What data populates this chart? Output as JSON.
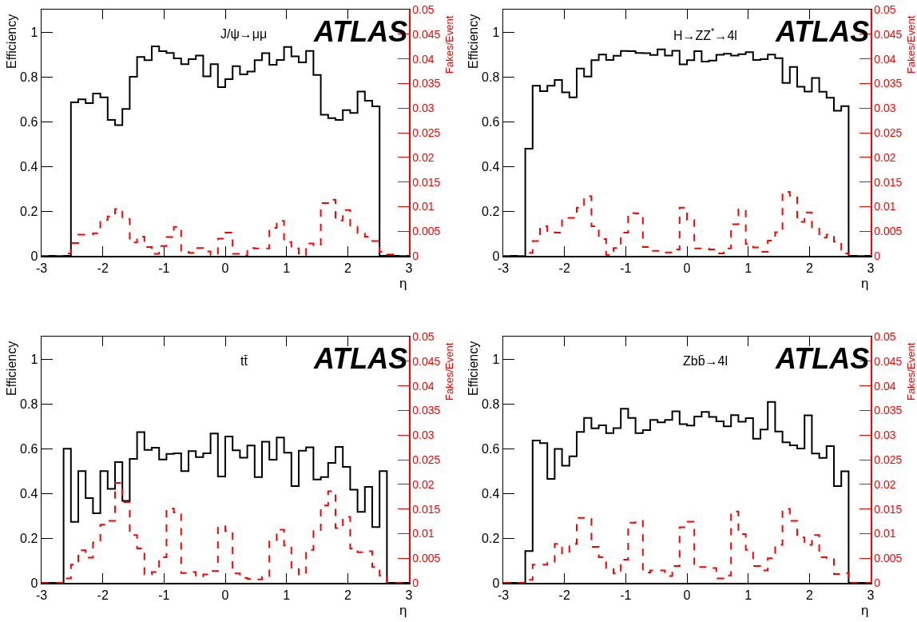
{
  "chart_data": [
    {
      "type": "histogram",
      "xlabel": "η",
      "ylabel": "Efficiency",
      "y2label": "Fakes/Event",
      "annotations": [
        "J/ψ→μμ",
        "ATLAS"
      ],
      "bins": [
        -3,
        -2.88,
        -2.76,
        -2.64,
        -2.52,
        -2.4,
        -2.28,
        -2.16,
        -2.04,
        -1.92,
        -1.8,
        -1.68,
        -1.56,
        -1.44,
        -1.32,
        -1.2,
        -1.08,
        -0.96,
        -0.84,
        -0.72,
        -0.6,
        -0.48,
        -0.36,
        -0.24,
        -0.12,
        0,
        0.12,
        0.24,
        0.36,
        0.48,
        0.6,
        0.72,
        0.84,
        0.96,
        1.08,
        1.2,
        1.32,
        1.44,
        1.56,
        1.68,
        1.8,
        1.92,
        2.04,
        2.16,
        2.28,
        2.4,
        2.52,
        2.64,
        2.76,
        2.88,
        3
      ],
      "series": [
        {
          "type": "histogram",
          "color": "#000000",
          "values": [
            0,
            0,
            0,
            0,
            0.686,
            0.699,
            0.682,
            0.725,
            0.708,
            0.607,
            0.584,
            0.656,
            0.8,
            0.888,
            0.874,
            0.936,
            0.914,
            0.906,
            0.882,
            0.856,
            0.879,
            0.895,
            0.802,
            0.856,
            0.754,
            0.789,
            0.847,
            0.811,
            0.823,
            0.874,
            0.905,
            0.854,
            0.875,
            0.933,
            0.891,
            0.864,
            0.915,
            0.808,
            0.63,
            0.615,
            0.607,
            0.651,
            0.638,
            0.734,
            0.693,
            0.668,
            0,
            0,
            0,
            0
          ]
        },
        {
          "axis": "y2",
          "line_style": "dashed",
          "color": "#ff0000",
          "values": [
            0,
            0,
            0,
            0.0005,
            0.0026,
            0.0043,
            0.0043,
            0.0046,
            0.0073,
            0.008,
            0.0095,
            0.0075,
            0.0027,
            0.0039,
            0.0018,
            0.0004,
            0.002,
            0.0038,
            0.0059,
            0.0008,
            0.0006,
            0.0016,
            0.0009,
            0.0002,
            0.0035,
            0.0047,
            0.0004,
            0.0001,
            0.0016,
            0.0015,
            0.0015,
            0.0057,
            0.0071,
            0.0028,
            0.0015,
            0.0002,
            0.0025,
            0.0021,
            0.0107,
            0.0114,
            0.0072,
            0.0093,
            0.0059,
            0.0046,
            0.0039,
            0.003,
            0.0008,
            0.0003,
            0,
            0
          ]
        }
      ],
      "xlim": [
        -3,
        3
      ],
      "xticks": [
        -3,
        -2,
        -1,
        0,
        1,
        2,
        3
      ],
      "ylim": [
        0,
        1.1
      ],
      "yticks": [
        0,
        0.2,
        0.4,
        0.6,
        0.8,
        1
      ],
      "y2lim": [
        0,
        0.05
      ],
      "y2ticks": [
        0,
        0.005,
        0.01,
        0.015,
        0.02,
        0.025,
        0.03,
        0.035,
        0.04,
        0.045,
        0.05
      ],
      "grid": false
    },
    {
      "type": "histogram",
      "xlabel": "η",
      "ylabel": "Efficiency",
      "y2label": "Fakes/Event",
      "annotations": [
        "H→ZZ$^{*}$→4l",
        "ATLAS"
      ],
      "bins": [
        -3,
        -2.88,
        -2.76,
        -2.64,
        -2.52,
        -2.4,
        -2.28,
        -2.16,
        -2.04,
        -1.92,
        -1.8,
        -1.68,
        -1.56,
        -1.44,
        -1.32,
        -1.2,
        -1.08,
        -0.96,
        -0.84,
        -0.72,
        -0.6,
        -0.48,
        -0.36,
        -0.24,
        -0.12,
        0,
        0.12,
        0.24,
        0.36,
        0.48,
        0.6,
        0.72,
        0.84,
        0.96,
        1.08,
        1.2,
        1.32,
        1.44,
        1.56,
        1.68,
        1.8,
        1.92,
        2.04,
        2.16,
        2.28,
        2.4,
        2.52,
        2.64,
        2.76,
        2.88,
        3
      ],
      "series": [
        {
          "type": "histogram",
          "color": "#000000",
          "values": [
            0,
            0,
            0,
            0.479,
            0.76,
            0.736,
            0.76,
            0.786,
            0.73,
            0.708,
            0.837,
            0.801,
            0.874,
            0.899,
            0.875,
            0.894,
            0.915,
            0.914,
            0.906,
            0.905,
            0.897,
            0.922,
            0.895,
            0.916,
            0.855,
            0.874,
            0.914,
            0.868,
            0.872,
            0.898,
            0.903,
            0.895,
            0.901,
            0.91,
            0.875,
            0.879,
            0.899,
            0.883,
            0.772,
            0.844,
            0.755,
            0.734,
            0.795,
            0.733,
            0.706,
            0.648,
            0.669,
            0,
            0,
            0
          ]
        },
        {
          "axis": "y2",
          "line_style": "dashed",
          "color": "#ff0000",
          "values": [
            0,
            0,
            0,
            0.0006,
            0.003,
            0.006,
            0.0048,
            0.0047,
            0.0077,
            0.0077,
            0.0098,
            0.0121,
            0.006,
            0.0034,
            0.0002,
            0.0016,
            0.0047,
            0.0087,
            0.0086,
            0.0018,
            0.001,
            0.001,
            0.0007,
            0.0013,
            0.0098,
            0.0073,
            0.0015,
            0.0015,
            0.0013,
            0.0005,
            0.0015,
            0.0064,
            0.0094,
            0.0024,
            0.0017,
            0.0008,
            0.0031,
            0.0048,
            0.013,
            0.0122,
            0.0069,
            0.0088,
            0.0058,
            0.0037,
            0.0043,
            0.0029,
            0.0005,
            0,
            0,
            0
          ]
        }
      ],
      "xlim": [
        -3,
        3
      ],
      "xticks": [
        -3,
        -2,
        -1,
        0,
        1,
        2,
        3
      ],
      "ylim": [
        0,
        1.1
      ],
      "yticks": [
        0,
        0.2,
        0.4,
        0.6,
        0.8,
        1
      ],
      "y2lim": [
        0,
        0.05
      ],
      "y2ticks": [
        0,
        0.005,
        0.01,
        0.015,
        0.02,
        0.025,
        0.03,
        0.035,
        0.04,
        0.045,
        0.05
      ],
      "grid": false
    },
    {
      "type": "histogram",
      "xlabel": "η",
      "ylabel": "Efficiency",
      "y2label": "Fakes/Event",
      "annotations": [
        "tt̄",
        "ATLAS"
      ],
      "bins": [
        -3,
        -2.88,
        -2.76,
        -2.64,
        -2.52,
        -2.4,
        -2.28,
        -2.16,
        -2.04,
        -1.92,
        -1.8,
        -1.68,
        -1.56,
        -1.44,
        -1.32,
        -1.2,
        -1.08,
        -0.96,
        -0.84,
        -0.72,
        -0.6,
        -0.48,
        -0.36,
        -0.24,
        -0.12,
        0,
        0.12,
        0.24,
        0.36,
        0.48,
        0.6,
        0.72,
        0.84,
        0.96,
        1.08,
        1.2,
        1.32,
        1.44,
        1.56,
        1.68,
        1.8,
        1.92,
        2.04,
        2.16,
        2.28,
        2.4,
        2.52,
        2.64,
        2.76,
        2.88,
        3
      ],
      "series": [
        {
          "type": "histogram",
          "color": "#000000",
          "values": [
            0,
            0,
            0,
            0.599,
            0.272,
            0.499,
            0.379,
            0.311,
            0.499,
            0.42,
            0.539,
            0.366,
            0.554,
            0.673,
            0.594,
            0.604,
            0.551,
            0.576,
            0.579,
            0.499,
            0.588,
            0.562,
            0.579,
            0.667,
            0.475,
            0.654,
            0.592,
            0.559,
            0.613,
            0.472,
            0.63,
            0.55,
            0.649,
            0.581,
            0.432,
            0.59,
            0.605,
            0.462,
            0.472,
            0.536,
            0.607,
            0.518,
            0.416,
            0.317,
            0.429,
            0.249,
            0.499,
            0,
            0,
            0
          ]
        },
        {
          "axis": "y2",
          "line_style": "dashed",
          "color": "#ff0000",
          "values": [
            0,
            0,
            0,
            0.0009,
            0.0037,
            0.0066,
            0.0051,
            0.0082,
            0.0118,
            0.0126,
            0.0203,
            0.0164,
            0.0097,
            0.007,
            0.0017,
            0.0022,
            0.0052,
            0.0151,
            0.0143,
            0.002,
            0.0022,
            0.0013,
            0.0017,
            0.0024,
            0.0115,
            0.0105,
            0.0019,
            0.001,
            0.0008,
            0.0007,
            0.0012,
            0.0084,
            0.0108,
            0.0076,
            0.0028,
            0.0017,
            0.0067,
            0.0105,
            0.0157,
            0.0186,
            0.0111,
            0.0134,
            0.007,
            0.0062,
            0.0064,
            0.0032,
            0.0015,
            0,
            0,
            0
          ]
        }
      ],
      "xlim": [
        -3,
        3
      ],
      "xticks": [
        -3,
        -2,
        -1,
        0,
        1,
        2,
        3
      ],
      "ylim": [
        0,
        1.1
      ],
      "yticks": [
        0,
        0.2,
        0.4,
        0.6,
        0.8,
        1
      ],
      "y2lim": [
        0,
        0.05
      ],
      "y2ticks": [
        0,
        0.005,
        0.01,
        0.015,
        0.02,
        0.025,
        0.03,
        0.035,
        0.04,
        0.045,
        0.05
      ],
      "grid": false
    },
    {
      "type": "histogram",
      "xlabel": "η",
      "ylabel": "Efficiency",
      "y2label": "Fakes/Event",
      "annotations": [
        "Zbb̄→4l",
        "ATLAS"
      ],
      "bins": [
        -3,
        -2.88,
        -2.76,
        -2.64,
        -2.52,
        -2.4,
        -2.28,
        -2.16,
        -2.04,
        -1.92,
        -1.8,
        -1.68,
        -1.56,
        -1.44,
        -1.32,
        -1.2,
        -1.08,
        -0.96,
        -0.84,
        -0.72,
        -0.6,
        -0.48,
        -0.36,
        -0.24,
        -0.12,
        0,
        0.12,
        0.24,
        0.36,
        0.48,
        0.6,
        0.72,
        0.84,
        0.96,
        1.08,
        1.2,
        1.32,
        1.44,
        1.56,
        1.68,
        1.8,
        1.92,
        2.04,
        2.16,
        2.28,
        2.4,
        2.52,
        2.64,
        2.76,
        2.88,
        3
      ],
      "series": [
        {
          "type": "histogram",
          "color": "#000000",
          "values": [
            0,
            0,
            0,
            0.142,
            0.636,
            0.624,
            0.464,
            0.598,
            0.523,
            0.565,
            0.674,
            0.737,
            0.69,
            0.704,
            0.669,
            0.691,
            0.778,
            0.737,
            0.669,
            0.682,
            0.728,
            0.717,
            0.728,
            0.766,
            0.709,
            0.703,
            0.743,
            0.763,
            0.741,
            0.721,
            0.699,
            0.749,
            0.72,
            0.736,
            0.644,
            0.685,
            0.808,
            0.676,
            0.628,
            0.614,
            0.6,
            0.748,
            0.578,
            0.558,
            0.611,
            0.432,
            0.498,
            0,
            0,
            0
          ]
        },
        {
          "axis": "y2",
          "line_style": "dashed",
          "color": "#ff0000",
          "values": [
            0,
            0,
            0,
            0.0006,
            0.0037,
            0.0037,
            0.0041,
            0.0079,
            0.006,
            0.0079,
            0.0132,
            0.013,
            0.0073,
            0.0052,
            0.0028,
            0.0019,
            0.0047,
            0.0122,
            0.0126,
            0.0021,
            0.0025,
            0.0025,
            0.0014,
            0.0034,
            0.0113,
            0.0124,
            0.0032,
            0.0032,
            0.003,
            0.0009,
            0.0015,
            0.0145,
            0.0099,
            0.0067,
            0.0034,
            0.0025,
            0.005,
            0.0077,
            0.015,
            0.0126,
            0.0092,
            0.0077,
            0.0097,
            0.0052,
            0.005,
            0.0018,
            0.002,
            0,
            0,
            0
          ]
        }
      ],
      "xlim": [
        -3,
        3
      ],
      "xticks": [
        -3,
        -2,
        -1,
        0,
        1,
        2,
        3
      ],
      "ylim": [
        0,
        1.1
      ],
      "yticks": [
        0,
        0.2,
        0.4,
        0.6,
        0.8,
        1
      ],
      "y2lim": [
        0,
        0.05
      ],
      "y2ticks": [
        0,
        0.005,
        0.01,
        0.015,
        0.02,
        0.025,
        0.03,
        0.035,
        0.04,
        0.045,
        0.05
      ],
      "grid": false
    }
  ]
}
